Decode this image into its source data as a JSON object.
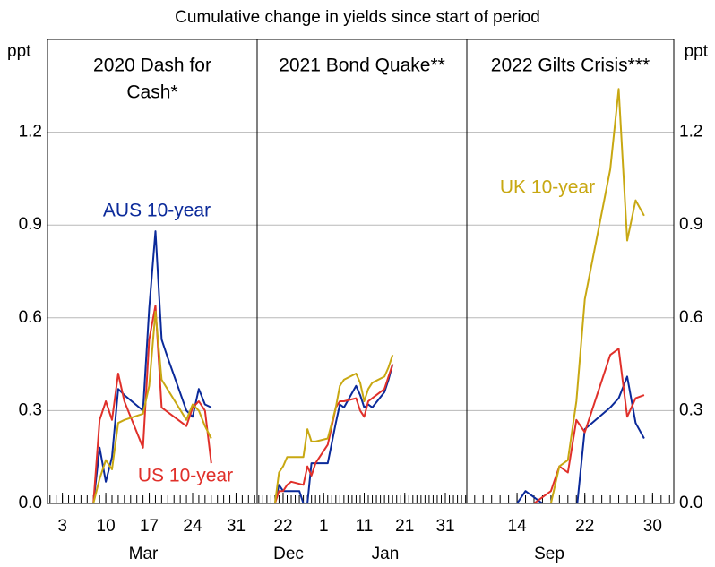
{
  "chart_data": {
    "type": "line",
    "title": "Cumulative change in yields since start of period",
    "ylabel_left": "ppt",
    "ylabel_right": "ppt",
    "ylim": [
      0,
      1.5
    ],
    "yticks": [
      {
        "value": 0,
        "label": "0.0"
      },
      0.3,
      0.6,
      0.9,
      1.2
    ],
    "grid": true,
    "series": [
      {
        "name": "AUS 10-year",
        "color": "#0b2a9a",
        "label_panel": 0
      },
      {
        "name": "US 10-year",
        "color": "#e0302a",
        "label_panel": 0
      },
      {
        "name": "UK 10-year",
        "color": "#c8a812",
        "label_panel": 2
      }
    ],
    "panels": [
      {
        "title": [
          "2020 Dash for",
          "Cash*"
        ],
        "months": [
          "Mar"
        ],
        "xlim": [
          0.6,
          34.4
        ],
        "xticks": [
          3,
          10,
          17,
          24,
          31
        ],
        "lines": [
          {
            "x": [
              8,
              9,
              10,
              11,
              12,
              13,
              16,
              17,
              18,
              19,
              20,
              23,
              24,
              25,
              26,
              27
            ],
            "values": [
              0,
              0.18,
              0.07,
              0.15,
              0.37,
              0.35,
              0.3,
              0.63,
              0.88,
              0.53,
              0.47,
              0.3,
              0.28,
              0.37,
              0.32,
              0.31
            ]
          },
          {
            "x": [
              8,
              9,
              10,
              11,
              12,
              13,
              16,
              17,
              18,
              19,
              23,
              24,
              25,
              26,
              27
            ],
            "values": [
              0,
              0.27,
              0.33,
              0.27,
              0.42,
              0.33,
              0.18,
              0.53,
              0.64,
              0.31,
              0.25,
              0.31,
              0.33,
              0.3,
              0.13
            ]
          },
          {
            "x": [
              8,
              9,
              10,
              11,
              12,
              13,
              16,
              17,
              18,
              19,
              23,
              24,
              25,
              26,
              27
            ],
            "values": [
              0,
              0.08,
              0.14,
              0.11,
              0.26,
              0.27,
              0.29,
              0.38,
              0.62,
              0.4,
              0.27,
              0.32,
              0.3,
              0.25,
              0.21
            ]
          }
        ]
      },
      {
        "title": [
          "2021 Bond Quake**"
        ],
        "months": [
          "Dec",
          "Jan"
        ],
        "xlim": [
          15.6,
          67.3
        ],
        "xticks": [
          22,
          {
            "value": 32,
            "label": "1"
          },
          {
            "value": 42,
            "label": "11"
          },
          {
            "value": 52,
            "label": "21"
          },
          {
            "value": 62,
            "label": "31"
          }
        ],
        "lines": [
          {
            "x": [
              20,
              21,
              22,
              23,
              26,
              27,
              28,
              29,
              30,
              33,
              35,
              36,
              37,
              40,
              41,
              42,
              43,
              44,
              47,
              48,
              49
            ],
            "values": [
              0,
              0.06,
              0.04,
              0.04,
              0.04,
              0,
              0,
              0.13,
              0.13,
              0.13,
              0.26,
              0.32,
              0.31,
              0.38,
              0.35,
              0.31,
              0.32,
              0.31,
              0.36,
              0.4,
              0.45
            ]
          },
          {
            "x": [
              20,
              21,
              22,
              23,
              24,
              27,
              28,
              29,
              30,
              33,
              35,
              36,
              37,
              40,
              41,
              42,
              43,
              44,
              47,
              48,
              49
            ],
            "values": [
              0,
              0.04,
              0.04,
              0.06,
              0.07,
              0.06,
              0.12,
              0.09,
              0.13,
              0.19,
              0.31,
              0.33,
              0.33,
              0.34,
              0.3,
              0.28,
              0.33,
              0.34,
              0.37,
              0.41,
              0.45
            ]
          },
          {
            "x": [
              20,
              21,
              22,
              23,
              26,
              27,
              28,
              29,
              30,
              33,
              35,
              36,
              37,
              40,
              41,
              42,
              43,
              44,
              47,
              48,
              49
            ],
            "values": [
              0,
              0.1,
              0.12,
              0.15,
              0.15,
              0.15,
              0.24,
              0.2,
              0.2,
              0.21,
              0.31,
              0.38,
              0.4,
              0.42,
              0.39,
              0.33,
              0.37,
              0.39,
              0.41,
              0.44,
              0.48
            ]
          }
        ]
      },
      {
        "title": [
          "2022 Gilts Crisis***"
        ],
        "months": [
          "Sep"
        ],
        "xlim": [
          8.07,
          32.5
        ],
        "xticks": [
          14,
          22,
          30
        ],
        "lines": [
          {
            "x": [
              14,
              15,
              17,
              18,
              21,
              22,
              25,
              26,
              27,
              28,
              29
            ],
            "values": [
              0,
              0.04,
              0,
              -0.03,
              -0.03,
              0.24,
              0.31,
              0.34,
              0.41,
              0.26,
              0.21
            ]
          },
          {
            "x": [
              16,
              17,
              18,
              19,
              20,
              21,
              22,
              25,
              26,
              27,
              28,
              29
            ],
            "values": [
              0,
              0.02,
              0.04,
              0.12,
              0.1,
              0.27,
              0.23,
              0.48,
              0.5,
              0.28,
              0.34,
              0.35
            ]
          },
          {
            "x": [
              18,
              19,
              20,
              21,
              22,
              25,
              26,
              27,
              28,
              29
            ],
            "values": [
              0,
              0.12,
              0.14,
              0.33,
              0.66,
              1.08,
              1.34,
              0.85,
              0.98,
              0.93
            ]
          }
        ]
      }
    ]
  }
}
